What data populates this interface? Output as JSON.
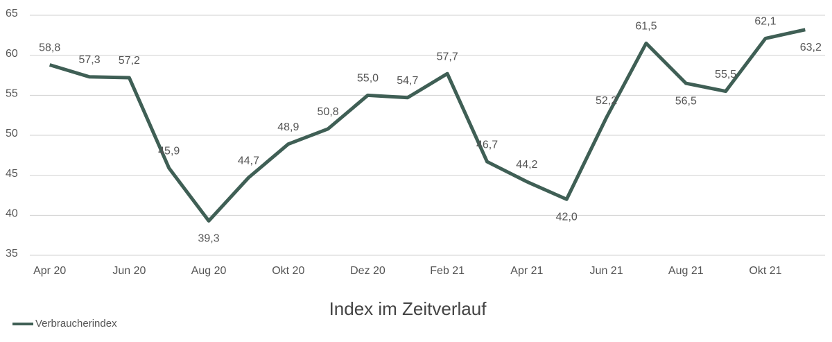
{
  "chart_data": {
    "type": "line",
    "title": "Index im Zeitverlauf",
    "categories": [
      "Apr 20",
      null,
      "Jun 20",
      null,
      "Aug 20",
      null,
      "Okt 20",
      null,
      "Dez 20",
      null,
      "Feb 21",
      null,
      "Apr 21",
      null,
      "Jun 21",
      null,
      "Aug 21",
      null,
      "Okt 21",
      null
    ],
    "series": [
      {
        "name": "Verbraucherindex",
        "color": "#3f5f55",
        "values": [
          58.8,
          57.3,
          57.2,
          45.9,
          39.3,
          44.7,
          48.9,
          50.8,
          55.0,
          54.7,
          57.7,
          46.7,
          44.2,
          42.0,
          52.2,
          61.5,
          56.5,
          55.5,
          62.1,
          63.2
        ],
        "value_labels": [
          "58,8",
          "57,3",
          "57,2",
          "45,9",
          "39,3",
          "44,7",
          "48,9",
          "50,8",
          "55,0",
          "54,7",
          "57,7",
          "46,7",
          "44,2",
          "42,0",
          "52,2",
          "61,5",
          "56,5",
          "55,5",
          "62,1",
          "63,2"
        ]
      }
    ],
    "ylim": [
      35,
      65
    ],
    "yticks": [
      35,
      40,
      45,
      50,
      55,
      60,
      65
    ],
    "grid": true,
    "legend": "bottom-left"
  }
}
